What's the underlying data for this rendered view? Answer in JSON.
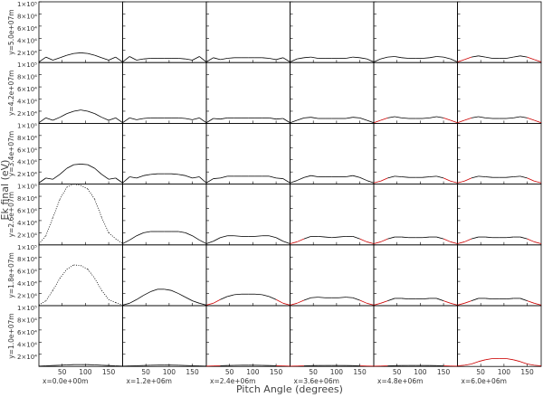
{
  "chart_data": {
    "type": "line",
    "x_label": "Pitch Angle (degrees)",
    "y_label": "Ek final (eV)",
    "xlim": [
      0,
      180
    ],
    "xticks": [
      50,
      100,
      150
    ],
    "ylim": [
      0,
      100000
    ],
    "yticks": [
      {
        "value": 20000,
        "label": "2×10⁴"
      },
      {
        "value": 40000,
        "label": "4×10⁴"
      },
      {
        "value": 60000,
        "label": "6×10⁴"
      },
      {
        "value": 80000,
        "label": "8×10⁴"
      },
      {
        "value": 100000,
        "label": "1×10⁵"
      }
    ],
    "x": [
      0,
      15,
      30,
      45,
      60,
      75,
      90,
      105,
      120,
      135,
      150,
      165,
      180
    ],
    "row_labels": [
      "y=5.0e+07m",
      "y=4.2e+07m",
      "y=3.4e+07m",
      "y=2.6e+07m",
      "y=1.8e+07m",
      "y=1.0e+07m"
    ],
    "col_labels": [
      "x=0.0e+00m",
      "x=1.2e+06m",
      "x=2.4e+06m",
      "x=3.6e+06m",
      "x=4.8e+06m",
      "x=6.0e+06m"
    ],
    "panels": [
      [
        {
          "color": "#000000",
          "values": [
            1000,
            9000,
            4000,
            8000,
            12000,
            15000,
            16000,
            15000,
            12000,
            8000,
            4000,
            9000,
            1000
          ]
        },
        {
          "color": "#000000",
          "values": [
            1000,
            10000,
            4000,
            6000,
            7000,
            7000,
            7000,
            7000,
            7000,
            6000,
            4000,
            10000,
            1000
          ]
        },
        {
          "color": "#000000",
          "values": [
            1000,
            8000,
            5000,
            7000,
            8000,
            8000,
            8000,
            8000,
            8000,
            7000,
            5000,
            8000,
            1000
          ]
        },
        {
          "color": "#000000",
          "values": [
            1000,
            6000,
            8000,
            9000,
            7000,
            7000,
            7000,
            7000,
            7000,
            9000,
            8000,
            6000,
            1000
          ]
        },
        {
          "color": "#000000",
          "values": [
            1000,
            6000,
            9000,
            10000,
            8000,
            7000,
            7000,
            7000,
            8000,
            10000,
            9000,
            6000,
            1000
          ]
        },
        {
          "color": "#000000",
          "edge_color": "#cc0000",
          "values": [
            1000,
            5000,
            9000,
            11000,
            9000,
            7000,
            7000,
            7000,
            9000,
            11000,
            9000,
            5000,
            1000
          ]
        }
      ],
      [
        {
          "color": "#000000",
          "values": [
            1000,
            9000,
            5000,
            10000,
            16000,
            20000,
            22000,
            20000,
            16000,
            10000,
            5000,
            9000,
            1000
          ]
        },
        {
          "color": "#000000",
          "values": [
            1000,
            9000,
            6000,
            8000,
            9000,
            9000,
            9000,
            9000,
            9000,
            8000,
            6000,
            9000,
            1000
          ]
        },
        {
          "color": "#000000",
          "values": [
            1000,
            8000,
            7000,
            9000,
            9000,
            9000,
            9000,
            9000,
            9000,
            9000,
            7000,
            8000,
            1000
          ]
        },
        {
          "color": "#000000",
          "values": [
            1000,
            5000,
            9000,
            10000,
            8000,
            8000,
            8000,
            8000,
            8000,
            10000,
            9000,
            5000,
            1000
          ]
        },
        {
          "color": "#000000",
          "edge_color": "#cc0000",
          "values": [
            1000,
            5000,
            9000,
            11000,
            9000,
            8000,
            8000,
            8000,
            9000,
            11000,
            9000,
            5000,
            1000
          ]
        },
        {
          "color": "#000000",
          "edge_color": "#cc0000",
          "values": [
            1000,
            5000,
            9000,
            11000,
            9000,
            8000,
            8000,
            8000,
            9000,
            11000,
            9000,
            5000,
            1000
          ]
        }
      ],
      [
        {
          "color": "#000000",
          "values": [
            2000,
            10000,
            8000,
            16000,
            26000,
            32000,
            33000,
            32000,
            26000,
            16000,
            8000,
            10000,
            2000
          ]
        },
        {
          "color": "#000000",
          "values": [
            2000,
            12000,
            10000,
            14000,
            16000,
            17000,
            17000,
            17000,
            16000,
            14000,
            10000,
            12000,
            2000
          ]
        },
        {
          "color": "#000000",
          "values": [
            2000,
            9000,
            10000,
            13000,
            13000,
            13000,
            13000,
            13000,
            13000,
            13000,
            10000,
            9000,
            2000
          ]
        },
        {
          "color": "#000000",
          "values": [
            2000,
            6000,
            11000,
            14000,
            12000,
            12000,
            12000,
            12000,
            12000,
            14000,
            11000,
            6000,
            2000
          ]
        },
        {
          "color": "#000000",
          "edge_color": "#cc0000",
          "values": [
            2000,
            5000,
            10000,
            13000,
            12000,
            11000,
            11000,
            11000,
            12000,
            13000,
            10000,
            5000,
            2000
          ]
        },
        {
          "color": "#000000",
          "edge_color": "#cc0000",
          "values": [
            2000,
            5000,
            10000,
            13000,
            12000,
            11000,
            11000,
            11000,
            12000,
            13000,
            10000,
            5000,
            2000
          ]
        }
      ],
      [
        {
          "color": "#000000",
          "dashed": true,
          "values": [
            2000,
            15000,
            45000,
            75000,
            95000,
            100000,
            98000,
            92000,
            75000,
            45000,
            20000,
            10000,
            2000
          ]
        },
        {
          "color": "#000000",
          "values": [
            2000,
            8000,
            15000,
            20000,
            22000,
            22000,
            22000,
            22000,
            22000,
            20000,
            15000,
            8000,
            2000
          ]
        },
        {
          "color": "#000000",
          "values": [
            2000,
            6000,
            12000,
            15000,
            15000,
            14000,
            14000,
            14000,
            15000,
            15000,
            12000,
            6000,
            2000
          ]
        },
        {
          "color": "#000000",
          "edge_color": "#cc0000",
          "values": [
            2000,
            5000,
            10000,
            14000,
            14000,
            13000,
            12000,
            13000,
            14000,
            14000,
            10000,
            5000,
            2000
          ]
        },
        {
          "color": "#000000",
          "edge_color": "#cc0000",
          "values": [
            2000,
            5000,
            10000,
            13000,
            13000,
            12000,
            12000,
            12000,
            13000,
            13000,
            10000,
            5000,
            2000
          ]
        },
        {
          "color": "#000000",
          "edge_color": "#cc0000",
          "values": [
            2000,
            5000,
            10000,
            13000,
            13000,
            12000,
            12000,
            12000,
            13000,
            13000,
            10000,
            5000,
            2000
          ]
        }
      ],
      [
        {
          "color": "#000000",
          "dashed": true,
          "values": [
            1000,
            8000,
            25000,
            45000,
            60000,
            67000,
            66000,
            60000,
            45000,
            25000,
            10000,
            5000,
            1000
          ]
        },
        {
          "color": "#000000",
          "values": [
            1000,
            4000,
            10000,
            17000,
            23000,
            27000,
            27000,
            25000,
            20000,
            14000,
            8000,
            4000,
            1000
          ]
        },
        {
          "color": "#000000",
          "edge_color": "#cc0000",
          "values": [
            1000,
            4000,
            10000,
            15000,
            18000,
            19000,
            19000,
            19000,
            18000,
            15000,
            10000,
            4000,
            1000
          ]
        },
        {
          "color": "#000000",
          "edge_color": "#cc0000",
          "values": [
            1000,
            4000,
            9000,
            13000,
            14000,
            13000,
            13000,
            13000,
            14000,
            13000,
            9000,
            4000,
            1000
          ]
        },
        {
          "color": "#000000",
          "edge_color": "#cc0000",
          "values": [
            1000,
            4000,
            8000,
            12000,
            12000,
            11000,
            11000,
            11000,
            12000,
            12000,
            8000,
            4000,
            1000
          ]
        },
        {
          "color": "#000000",
          "edge_color": "#cc0000",
          "values": [
            1000,
            4000,
            8000,
            12000,
            12000,
            11000,
            11000,
            11000,
            12000,
            12000,
            8000,
            4000,
            1000
          ]
        }
      ],
      [
        {
          "color": "#000000",
          "values": [
            500,
            1000,
            1500,
            2000,
            2500,
            3000,
            3000,
            3000,
            2500,
            2000,
            1500,
            1000,
            500
          ]
        },
        {
          "color": "#000000",
          "values": [
            500,
            800,
            1200,
            1600,
            2000,
            2200,
            2200,
            2200,
            2000,
            1600,
            1200,
            800,
            500
          ]
        },
        {
          "color": "#000000",
          "edge_color": "#cc0000",
          "values": [
            500,
            800,
            1200,
            1500,
            1800,
            2000,
            2000,
            2000,
            1800,
            1500,
            1200,
            800,
            500
          ]
        },
        {
          "color": "#000000",
          "edge_color": "#cc0000",
          "values": [
            500,
            700,
            1000,
            1300,
            1500,
            1600,
            1600,
            1600,
            1500,
            1300,
            1000,
            700,
            500
          ]
        },
        {
          "color": "#000000",
          "edge_color": "#cc0000",
          "values": [
            500,
            700,
            1000,
            1300,
            1500,
            1600,
            1600,
            1600,
            1500,
            1300,
            1000,
            700,
            500
          ]
        },
        {
          "color": "#cc0000",
          "values": [
            1000,
            2000,
            4000,
            8000,
            11000,
            13000,
            13000,
            13000,
            11000,
            8000,
            4000,
            2000,
            1000
          ]
        }
      ]
    ]
  }
}
